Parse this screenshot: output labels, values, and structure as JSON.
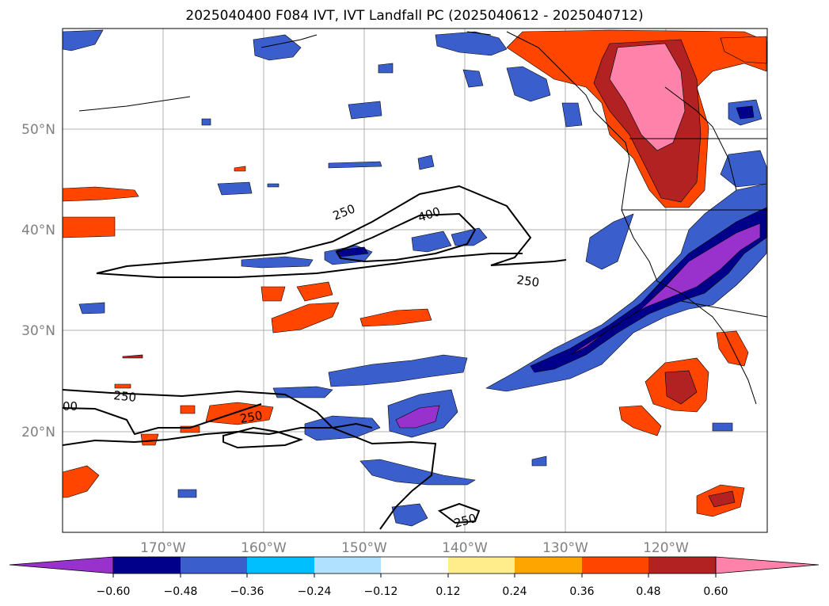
{
  "title": "2025040400 F084 IVT, IVT Landfall PC (2025040612 - 2025040712)",
  "map": {
    "lat_labels": [
      "50°N",
      "40°N",
      "30°N",
      "20°N"
    ],
    "lon_labels": [
      "170°W",
      "160°W",
      "150°W",
      "140°W",
      "130°W",
      "120°W"
    ],
    "ivt_contours": [
      {
        "level": "250",
        "label": "250"
      },
      {
        "level": "400",
        "label": "400"
      }
    ],
    "extra_contour_labels": [
      "250",
      "250",
      "250",
      "250",
      "00"
    ],
    "colors": {
      "coast": "#000000",
      "grid": "#b0b0b0",
      "axis_text": "#808080"
    }
  },
  "colorbar": {
    "ticks": [
      "−0.60",
      "−0.48",
      "−0.36",
      "−0.24",
      "−0.12",
      "0.12",
      "0.24",
      "0.36",
      "0.48",
      "0.60"
    ],
    "colors": [
      "#9932cc",
      "#00008b",
      "#3a5fcd",
      "#00bfff",
      "#b0e2ff",
      "#ffffff",
      "#ffec8b",
      "#ffa500",
      "#ff4500",
      "#b22222",
      "#ff82ab"
    ]
  }
}
